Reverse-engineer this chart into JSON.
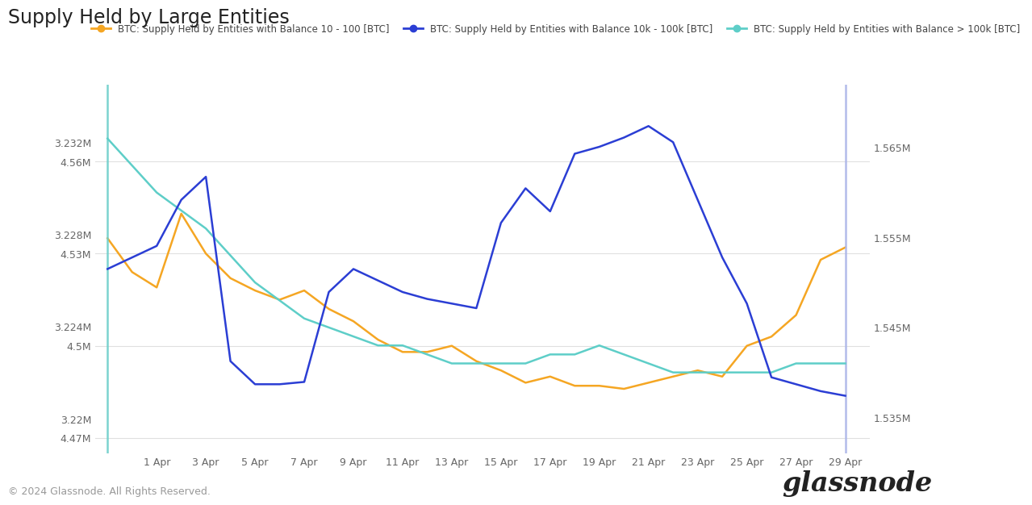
{
  "title": "Supply Held by Large Entities",
  "legend_labels": [
    "BTC: Supply Held by Entities with Balance 10 - 100 [BTC]",
    "BTC: Supply Held by Entities with Balance 10k - 100k [BTC]",
    "BTC: Supply Held by Entities with Balance > 100k [BTC]"
  ],
  "legend_colors": [
    "#f5a623",
    "#2b3ed4",
    "#5ecec8"
  ],
  "x_tick_positions": [
    2,
    4,
    6,
    8,
    10,
    12,
    14,
    16,
    18,
    20,
    22,
    24,
    26,
    28,
    30
  ],
  "x_labels": [
    "1 Apr",
    "3 Apr",
    "5 Apr",
    "7 Apr",
    "9 Apr",
    "11 Apr",
    "13 Apr",
    "15 Apr",
    "17 Apr",
    "19 Apr",
    "21 Apr",
    "23 Apr",
    "25 Apr",
    "27 Apr",
    "29 Apr"
  ],
  "left_yticks_val": [
    4.47,
    4.5,
    4.53,
    4.56
  ],
  "left_yticks_lbl": [
    "4.47M",
    "4.5M",
    "4.53M",
    "4.56M"
  ],
  "middle_yticks_val": [
    3.22,
    3.224,
    3.228,
    3.232
  ],
  "middle_yticks_lbl": [
    "3.22M",
    "3.224M",
    "3.228M",
    "3.232M"
  ],
  "right_yticks_val": [
    1.535,
    1.545,
    1.555,
    1.565
  ],
  "right_yticks_lbl": [
    "1.535M",
    "1.545M",
    "1.555M",
    "1.565M"
  ],
  "left_ylim": [
    4.465,
    4.585
  ],
  "middle_ylim": [
    3.2185,
    3.2345
  ],
  "right_ylim": [
    1.531,
    1.572
  ],
  "bg_color": "#ffffff",
  "grid_color": "#e0e0e0",
  "orange_line": [
    4.535,
    4.524,
    4.519,
    4.543,
    4.53,
    4.522,
    4.518,
    4.515,
    4.518,
    4.512,
    4.508,
    4.502,
    4.498,
    4.498,
    4.5,
    4.495,
    4.492,
    4.488,
    4.49,
    4.487,
    4.487,
    4.486,
    4.488,
    4.49,
    4.492,
    4.49,
    4.5,
    4.503,
    4.51,
    4.528,
    4.532
  ],
  "blue_line": [
    3.2265,
    3.227,
    3.2275,
    3.2295,
    3.2305,
    3.2225,
    3.2215,
    3.2215,
    3.2216,
    3.2255,
    3.2265,
    3.226,
    3.2255,
    3.2252,
    3.225,
    3.2248,
    3.2285,
    3.23,
    3.229,
    3.2315,
    3.2318,
    3.2322,
    3.2327,
    3.232,
    3.2295,
    3.227,
    3.225,
    3.2218,
    3.2215,
    3.2212,
    3.221
  ],
  "cyan_line": [
    1.566,
    1.563,
    1.56,
    1.558,
    1.556,
    1.553,
    1.55,
    1.548,
    1.546,
    1.545,
    1.544,
    1.543,
    1.543,
    1.542,
    1.541,
    1.541,
    1.541,
    1.541,
    1.542,
    1.542,
    1.543,
    1.542,
    1.541,
    1.54,
    1.54,
    1.54,
    1.54,
    1.54,
    1.541,
    1.541,
    1.541
  ],
  "copyright": "© 2024 Glassnode. All Rights Reserved.",
  "watermark": "glassnode"
}
